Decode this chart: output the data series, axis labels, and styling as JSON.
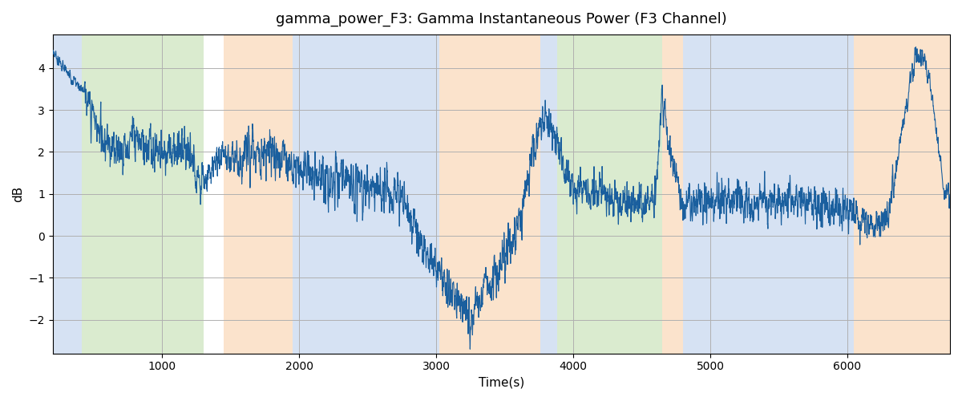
{
  "title": "gamma_power_F3: Gamma Instantaneous Power (F3 Channel)",
  "xlabel": "Time(s)",
  "ylabel": "dB",
  "line_color": "#1a5f9e",
  "line_width": 0.8,
  "bg_color": "#ffffff",
  "grid_color": "#b0b0b0",
  "xlim": [
    200,
    6750
  ],
  "ylim": [
    -2.8,
    4.8
  ],
  "yticks": [
    -2,
    -1,
    0,
    1,
    2,
    3,
    4
  ],
  "xticks": [
    1000,
    2000,
    3000,
    4000,
    5000,
    6000
  ],
  "bands": [
    {
      "start": 200,
      "end": 410,
      "color": "#aec6e8",
      "alpha": 0.5
    },
    {
      "start": 410,
      "end": 1300,
      "color": "#b6d9a0",
      "alpha": 0.5
    },
    {
      "start": 1450,
      "end": 1950,
      "color": "#f9c99a",
      "alpha": 0.5
    },
    {
      "start": 1950,
      "end": 3020,
      "color": "#aec6e8",
      "alpha": 0.5
    },
    {
      "start": 3020,
      "end": 3760,
      "color": "#f9c99a",
      "alpha": 0.5
    },
    {
      "start": 3760,
      "end": 3880,
      "color": "#aec6e8",
      "alpha": 0.5
    },
    {
      "start": 3880,
      "end": 4650,
      "color": "#b6d9a0",
      "alpha": 0.5
    },
    {
      "start": 4650,
      "end": 4800,
      "color": "#f9c99a",
      "alpha": 0.5
    },
    {
      "start": 4800,
      "end": 6050,
      "color": "#aec6e8",
      "alpha": 0.5
    },
    {
      "start": 6050,
      "end": 6750,
      "color": "#f9c99a",
      "alpha": 0.5
    }
  ],
  "seed": 7,
  "x_start": 200,
  "x_end": 6750,
  "n_points": 6550
}
